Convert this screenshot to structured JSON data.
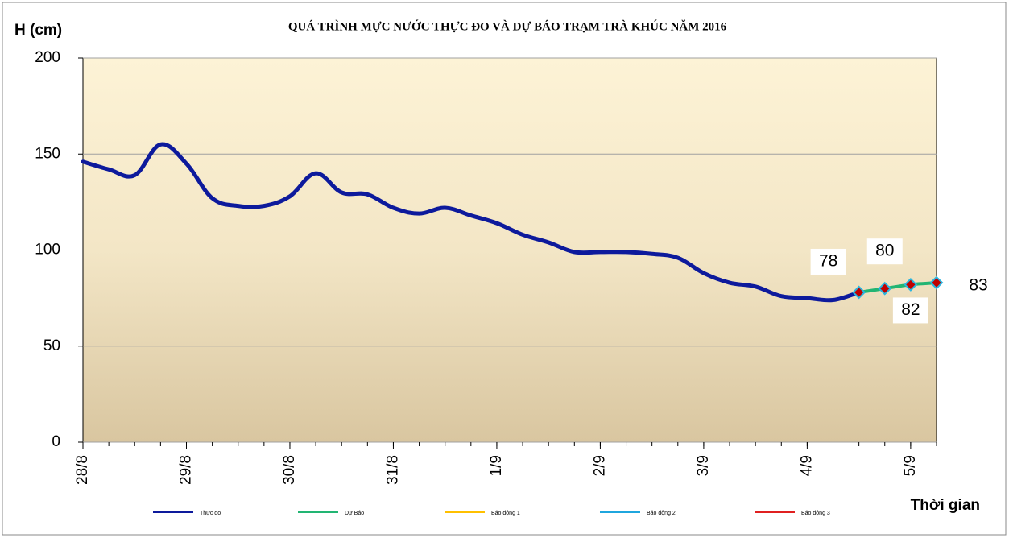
{
  "chart_data": {
    "type": "line",
    "title": "QUÁ TRÌNH MỰC NƯỚC THỰC ĐO VÀ DỰ BÁO TRẠM TRÀ KHÚC NĂM 2016",
    "y_label": "H (cm)",
    "x_label": "Thời gian",
    "x": [
      0,
      1,
      2,
      3,
      4,
      5,
      6,
      7,
      8,
      9,
      10,
      11,
      12,
      13,
      14,
      15,
      16,
      17,
      18,
      19,
      20,
      21,
      22,
      23,
      24,
      25,
      26,
      27,
      28,
      29,
      30,
      31,
      32,
      33
    ],
    "series": [
      {
        "name": "Thực đo",
        "color": "#0d1a9c",
        "values": [
          146,
          142,
          139,
          155,
          145,
          127,
          123,
          123,
          128,
          140,
          130,
          129,
          122,
          119,
          122,
          118,
          114,
          108,
          104,
          99,
          99,
          99,
          98,
          96,
          88,
          83,
          81,
          76,
          75,
          74,
          78,
          null,
          null,
          null
        ]
      },
      {
        "name": "Dự Báo",
        "color": "#22b573",
        "values": [
          null,
          null,
          null,
          null,
          null,
          null,
          null,
          null,
          null,
          null,
          null,
          null,
          null,
          null,
          null,
          null,
          null,
          null,
          null,
          null,
          null,
          null,
          null,
          null,
          null,
          null,
          null,
          null,
          null,
          null,
          78,
          80,
          82,
          83
        ]
      }
    ],
    "legend_only": [
      {
        "name": "Báo động 1",
        "color": "#ffc000"
      },
      {
        "name": "Báo động 2",
        "color": "#1fa6de"
      },
      {
        "name": "Báo động 3",
        "color": "#e02020"
      }
    ],
    "xlim": [
      0,
      33
    ],
    "xticks": [
      {
        "value": 0,
        "label": "28/8"
      },
      {
        "value": 4,
        "label": "29/8"
      },
      {
        "value": 8,
        "label": "30/8"
      },
      {
        "value": 12,
        "label": "31/8"
      },
      {
        "value": 16,
        "label": "1/9"
      },
      {
        "value": 20,
        "label": "2/9"
      },
      {
        "value": 24,
        "label": "3/9"
      },
      {
        "value": 28,
        "label": "4/9"
      },
      {
        "value": 32,
        "label": "5/9"
      }
    ],
    "ylim": [
      0,
      200
    ],
    "yticks": [
      0,
      50,
      100,
      150,
      200
    ],
    "grid": true
  }
}
